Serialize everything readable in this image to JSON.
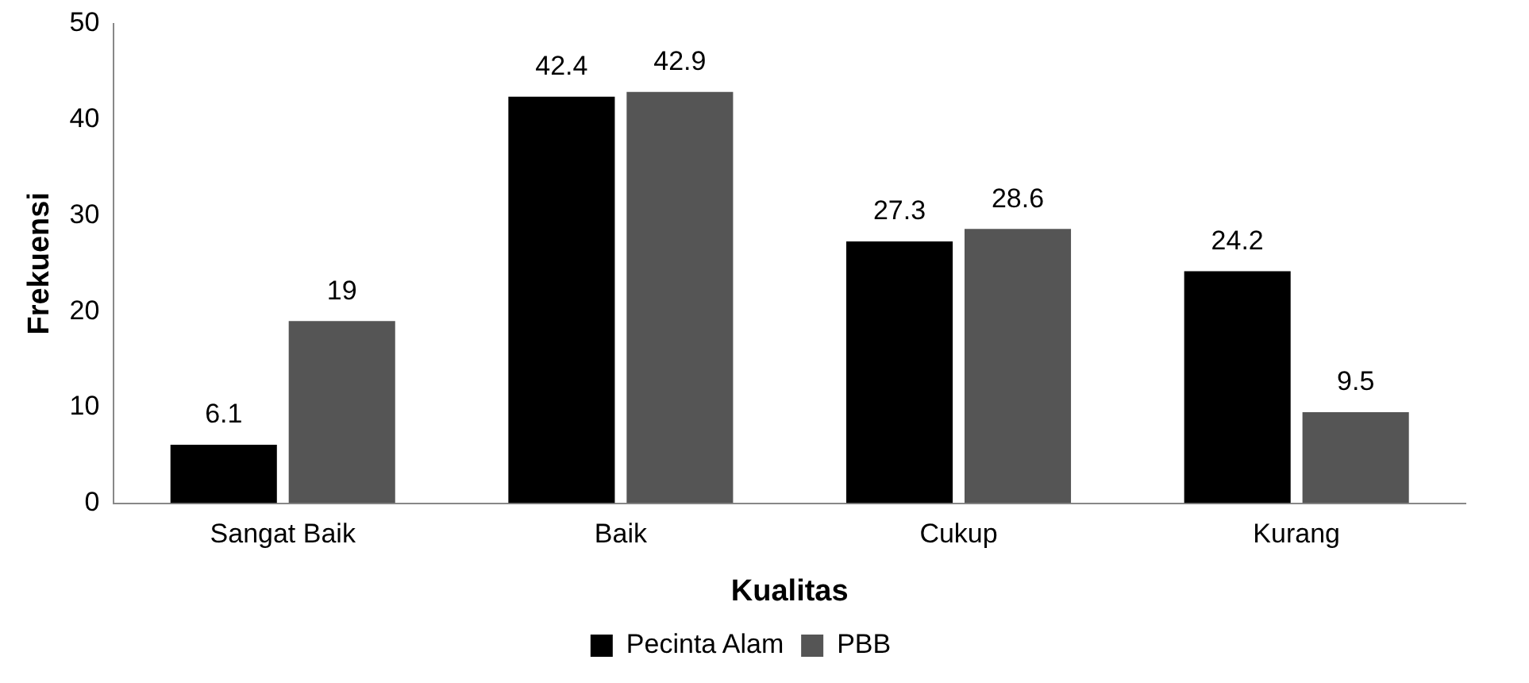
{
  "chart_data": {
    "type": "bar",
    "xlabel": "Kualitas",
    "ylabel": "Frekuensi",
    "categories": [
      "Sangat Baik",
      "Baik",
      "Cukup",
      "Kurang"
    ],
    "series": [
      {
        "name": "Pecinta Alam",
        "color": "#000000",
        "values": [
          6.1,
          42.4,
          27.3,
          24.2
        ]
      },
      {
        "name": "PBB",
        "color": "#555555",
        "values": [
          19,
          42.9,
          28.6,
          9.5
        ]
      }
    ],
    "ylim": [
      0,
      50
    ],
    "yticks": [
      0,
      10,
      20,
      30,
      40,
      50
    ],
    "grid": false,
    "legend": "bottom",
    "data_labels": true
  }
}
